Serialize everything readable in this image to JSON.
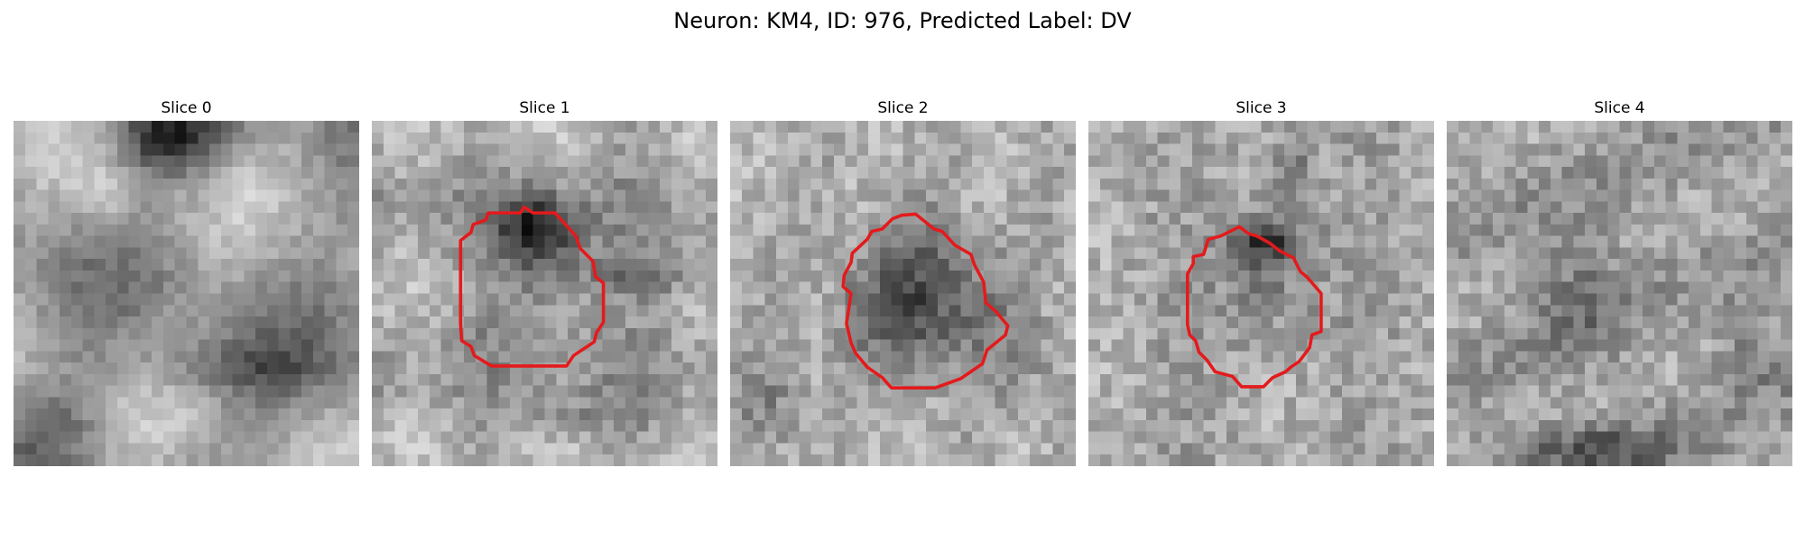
{
  "figure": {
    "title": "Neuron: KM4, ID: 976, Predicted Label: DV"
  },
  "panels": [
    {
      "title": "Slice 0",
      "has_outline": false
    },
    {
      "title": "Slice 1",
      "has_outline": true
    },
    {
      "title": "Slice 2",
      "has_outline": true
    },
    {
      "title": "Slice 3",
      "has_outline": true
    },
    {
      "title": "Slice 4",
      "has_outline": false
    }
  ],
  "colors": {
    "outline": "#e41a1c",
    "background": "#ffffff",
    "text": "#000000"
  },
  "image": {
    "colormap": "grayscale",
    "grid": "30x30 pixels per slice"
  }
}
